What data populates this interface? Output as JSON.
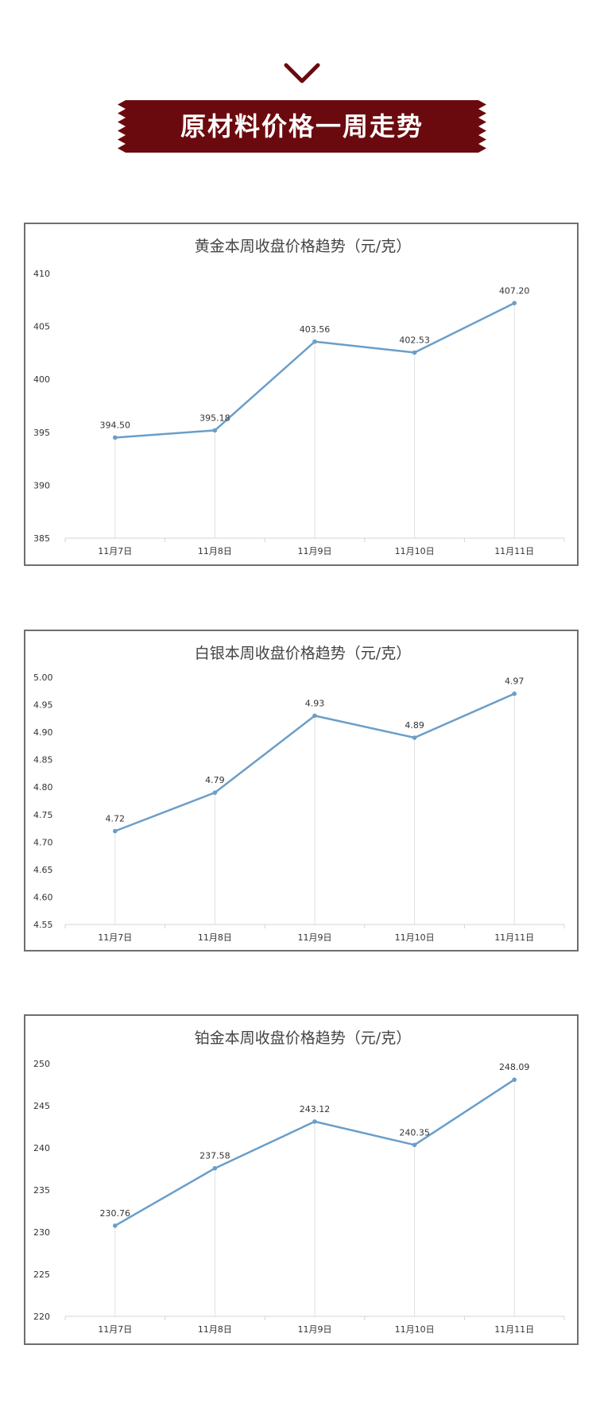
{
  "header": {
    "title": "原材料价格一周走势",
    "icon": "chevron-down-icon",
    "banner_color": "#6b0a0e"
  },
  "chart_data": [
    {
      "type": "line",
      "title": "黄金本周收盘价格趋势（元/克）",
      "categories": [
        "11月7日",
        "11月8日",
        "11月9日",
        "11月10日",
        "11月11日"
      ],
      "values": [
        394.5,
        395.18,
        403.56,
        402.53,
        407.2
      ],
      "data_labels": [
        "394.50",
        "395.18",
        "403.56",
        "402.53",
        "407.20"
      ],
      "ylim": [
        385,
        410
      ],
      "yticks": [
        "385",
        "390",
        "395",
        "400",
        "405",
        "410"
      ],
      "line_color": "#6a9ec9",
      "grid": false
    },
    {
      "type": "line",
      "title": "白银本周收盘价格趋势（元/克）",
      "categories": [
        "11月7日",
        "11月8日",
        "11月9日",
        "11月10日",
        "11月11日"
      ],
      "values": [
        4.72,
        4.79,
        4.93,
        4.89,
        4.97
      ],
      "data_labels": [
        "4.72",
        "4.79",
        "4.93",
        "4.89",
        "4.97"
      ],
      "ylim": [
        4.55,
        5.0
      ],
      "yticks": [
        "4.55",
        "4.60",
        "4.65",
        "4.70",
        "4.75",
        "4.80",
        "4.85",
        "4.90",
        "4.95",
        "5.00"
      ],
      "line_color": "#6a9ec9",
      "grid": false
    },
    {
      "type": "line",
      "title": "铂金本周收盘价格趋势（元/克）",
      "categories": [
        "11月7日",
        "11月8日",
        "11月9日",
        "11月10日",
        "11月11日"
      ],
      "values": [
        230.76,
        237.58,
        243.12,
        240.35,
        248.09
      ],
      "data_labels": [
        "230.76",
        "237.58",
        "243.12",
        "240.35",
        "248.09"
      ],
      "ylim": [
        220,
        250
      ],
      "yticks": [
        "220",
        "225",
        "230",
        "235",
        "240",
        "245",
        "250"
      ],
      "line_color": "#6a9ec9",
      "grid": false
    }
  ]
}
